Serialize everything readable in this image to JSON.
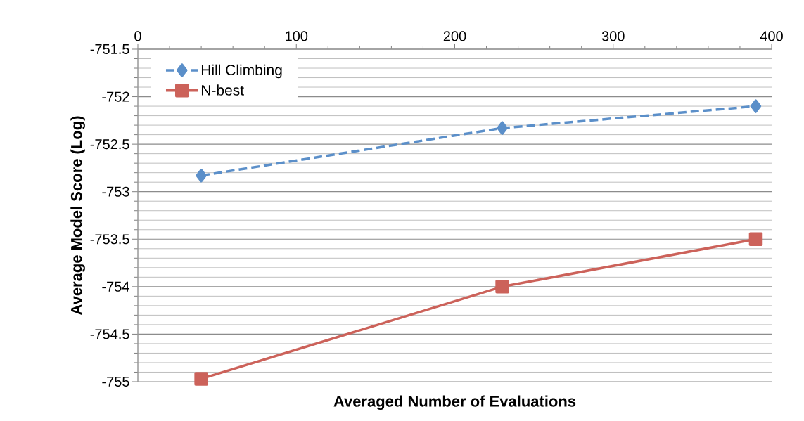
{
  "chart_data": {
    "type": "line",
    "xlabel": "Averaged Number of Evaluations",
    "ylabel": "Average Model Score (Log)",
    "xlim": [
      0,
      400
    ],
    "xticks": [
      0,
      100,
      200,
      300,
      400
    ],
    "ylim": [
      -755,
      -751.5
    ],
    "yticks": [
      -755,
      -754.5,
      -754,
      -753.5,
      -753,
      -752.5,
      -752,
      -751.5
    ],
    "grid": "y",
    "legend": "top left",
    "series": [
      {
        "name": "Hill Climbing",
        "color": "#5b8fc9",
        "marker": "diamond",
        "line_style": "dashed",
        "x": [
          40,
          230,
          390
        ],
        "values": [
          -752.83,
          -752.33,
          -752.1
        ]
      },
      {
        "name": "N-best",
        "color": "#cc625a",
        "marker": "square",
        "line_style": "solid",
        "x": [
          40,
          230,
          390
        ],
        "values": [
          -754.97,
          -754.0,
          -753.5
        ]
      }
    ]
  }
}
